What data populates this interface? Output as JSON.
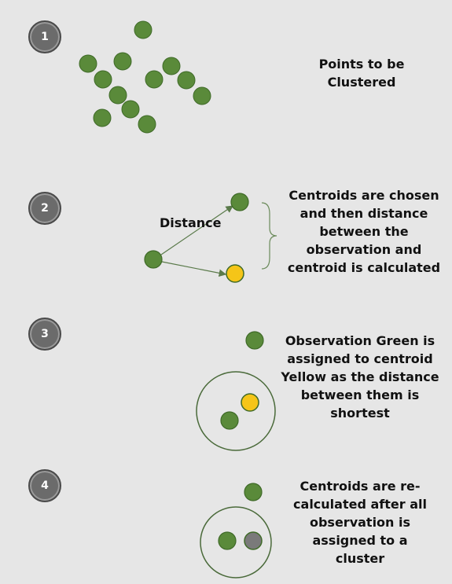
{
  "steps": [
    {
      "number": "1",
      "caption": "Points to be\nClustered"
    },
    {
      "number": "2",
      "caption": "Centroids are chosen\nand then distance\nbetween the\nobservation and\ncentroid is calculated"
    },
    {
      "number": "3",
      "caption": "Observation Green is\nassigned to centroid\nYellow as the distance\nbetween them is\nshortest"
    },
    {
      "number": "4",
      "caption": "Centroids are re-\ncalculated after all\nobservation is\nassigned to a\ncluster"
    }
  ],
  "distance_label": "Distance",
  "colors": {
    "background": "#e6e6e6",
    "green_point": "#5a8a3a",
    "yellow_centroid": "#f5c518",
    "grey_centroid": "#7a7a7a",
    "badge": "#6b6b6b",
    "line": "#5a7a4a"
  }
}
